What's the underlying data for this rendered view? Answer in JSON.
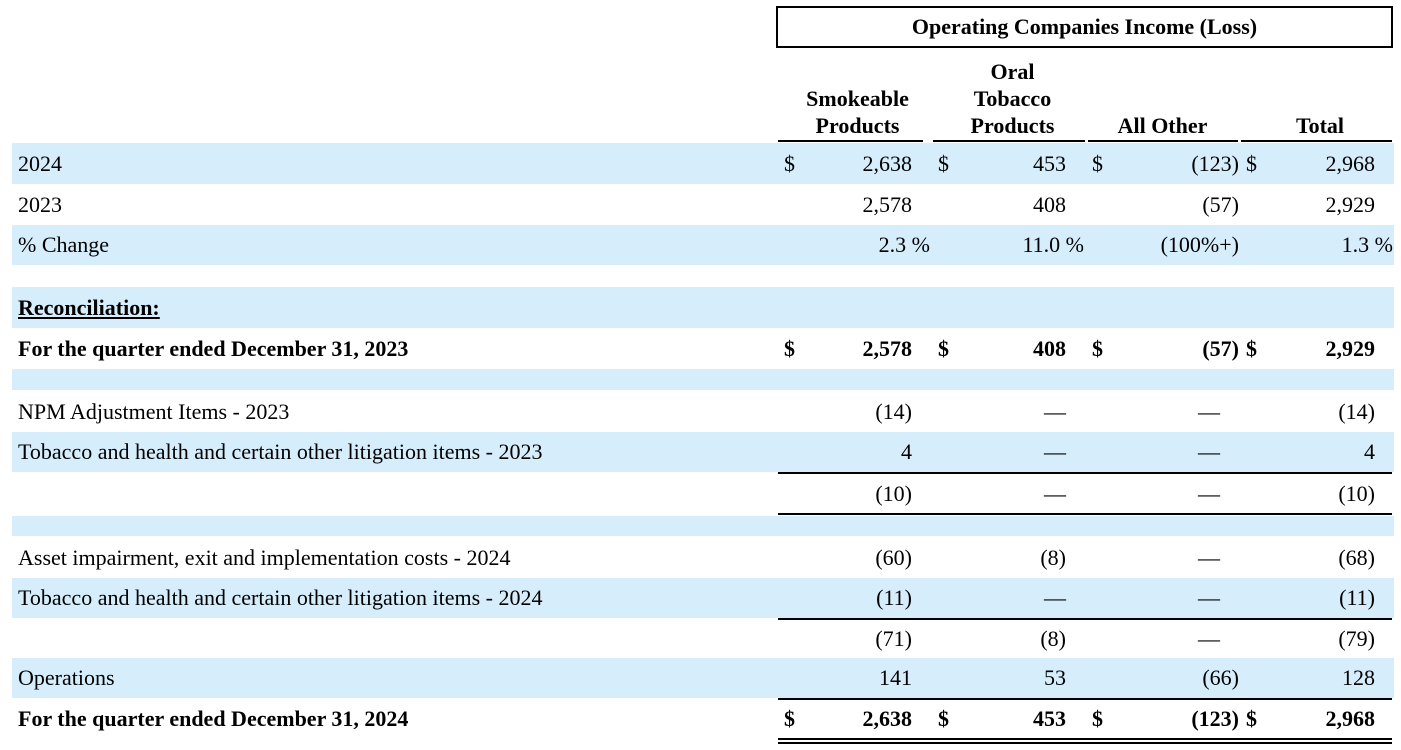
{
  "header": {
    "group_title": "Operating Companies Income (Loss)",
    "columns": [
      [
        "Smokeable",
        "Products"
      ],
      [
        "Oral",
        "Tobacco",
        "Products"
      ],
      [
        "All Other"
      ],
      [
        "Total"
      ]
    ]
  },
  "rows": [
    {
      "label": "2024",
      "d1": "$",
      "v1": "2,638",
      "d2": "$",
      "v2": "453",
      "d3": "$",
      "v3": "(123)",
      "d4": "$",
      "v4": "2,968"
    },
    {
      "label": "2023",
      "v1": "2,578",
      "v2": "408",
      "v3": "(57)",
      "v4": "2,929"
    },
    {
      "label": "% Change",
      "v1": "2.3 %",
      "v2": "11.0 %",
      "v3": "(100%+)",
      "v4": "1.3 %"
    },
    {
      "label": "Reconciliation:"
    },
    {
      "label": "For the quarter ended December 31, 2023",
      "d1": "$",
      "v1": "2,578",
      "d2": "$",
      "v2": "408",
      "d3": "$",
      "v3": "(57)",
      "d4": "$",
      "v4": "2,929"
    },
    {
      "label": "NPM Adjustment Items - 2023",
      "v1": "(14)",
      "v2": "—",
      "v3": "—",
      "v4": "(14)"
    },
    {
      "label": "Tobacco and health and certain other litigation items - 2023",
      "v1": "4",
      "v2": "—",
      "v3": "—",
      "v4": "4"
    },
    {
      "v1": "(10)",
      "v2": "—",
      "v3": "—",
      "v4": "(10)"
    },
    {
      "label": "Asset impairment, exit and implementation costs - 2024",
      "v1": "(60)",
      "v2": "(8)",
      "v3": "—",
      "v4": "(68)"
    },
    {
      "label": "Tobacco and health and certain other litigation items - 2024",
      "v1": "(11)",
      "v2": "—",
      "v3": "—",
      "v4": "(11)"
    },
    {
      "v1": "(71)",
      "v2": "(8)",
      "v3": "—",
      "v4": "(79)"
    },
    {
      "label": "Operations",
      "v1": "141",
      "v2": "53",
      "v3": "(66)",
      "v4": "128"
    },
    {
      "label": "For the quarter ended December 31, 2024",
      "d1": "$",
      "v1": "2,638",
      "d2": "$",
      "v2": "453",
      "d3": "$",
      "v3": "(123)",
      "d4": "$",
      "v4": "2,968"
    }
  ]
}
